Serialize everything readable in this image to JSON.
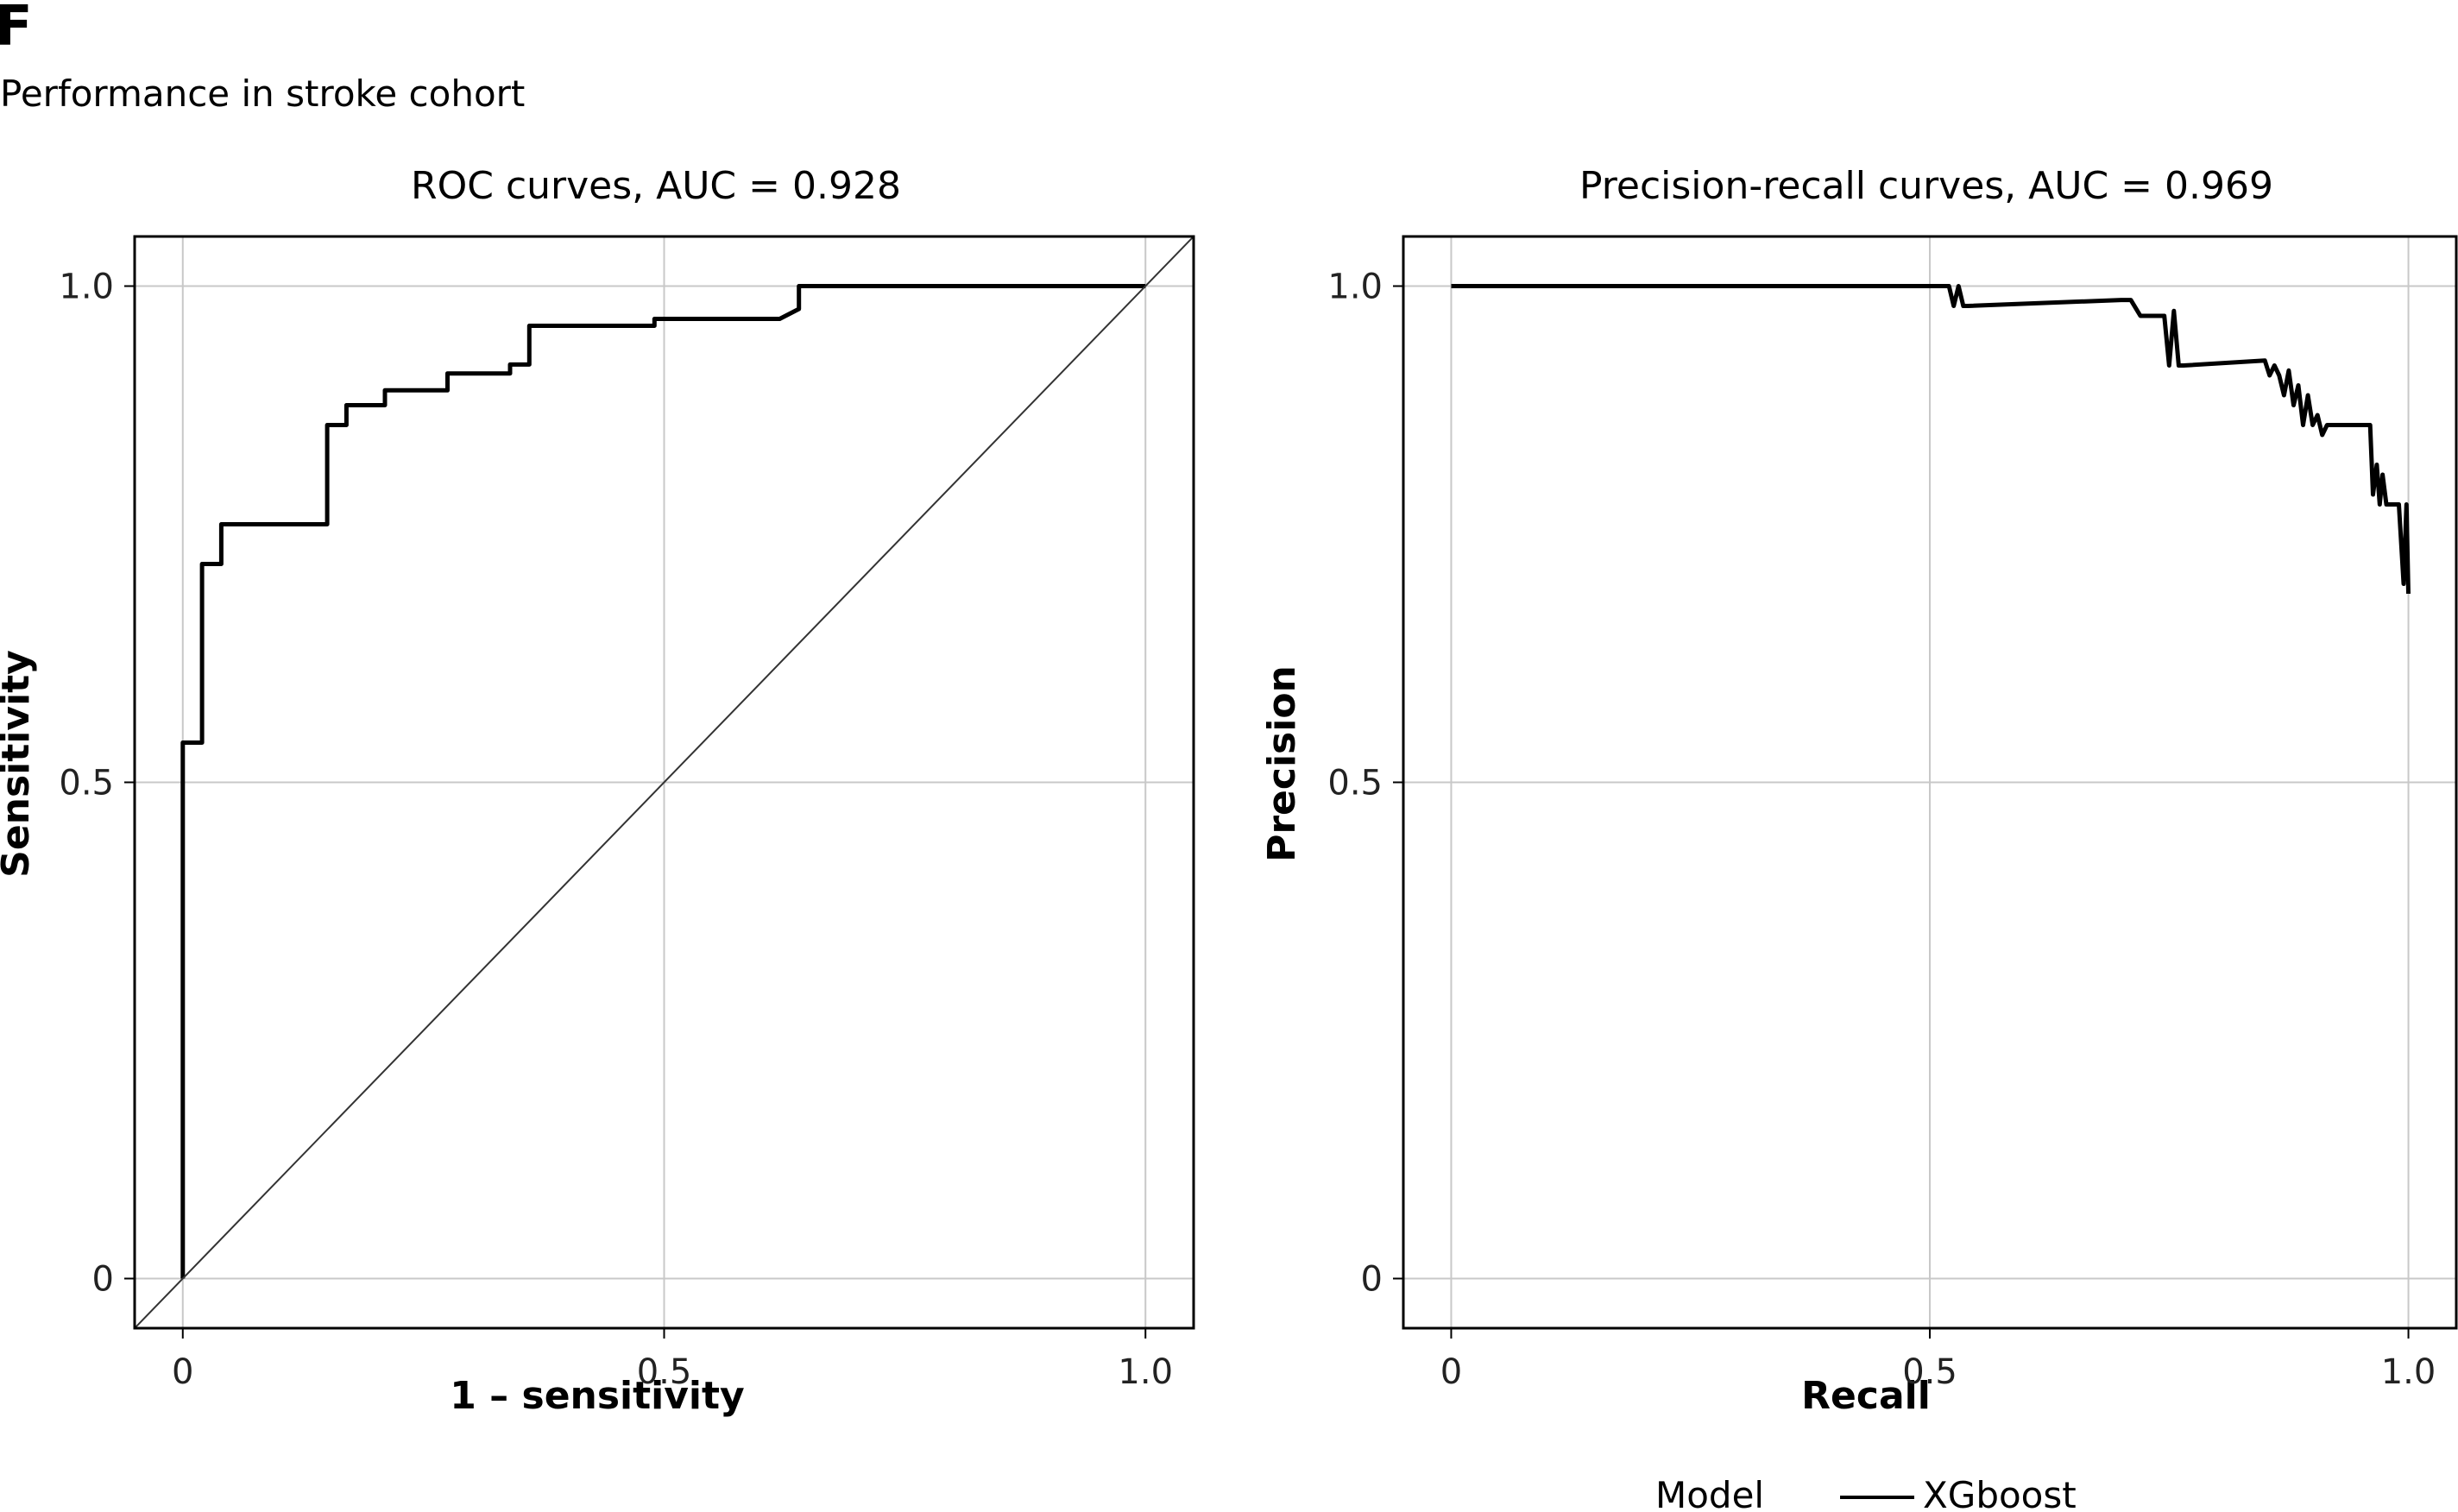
{
  "figure": {
    "panel_letter": "F",
    "subtitle": "Performance in stroke cohort"
  },
  "legend": {
    "title": "Model",
    "entries": [
      "XGboost"
    ]
  },
  "chart_data": [
    {
      "type": "line",
      "title": "ROC curves, AUC = 0.928",
      "xlabel": "1 – sensitivity",
      "ylabel": "Sensitivity",
      "xlim": [
        -0.05,
        1.05
      ],
      "ylim": [
        -0.05,
        1.05
      ],
      "xticks": [
        0,
        0.5,
        1.0
      ],
      "xtick_labels": [
        "0",
        "0.5",
        "1.0"
      ],
      "yticks": [
        0,
        0.5,
        1.0
      ],
      "ytick_labels": [
        "0",
        "0.5",
        "1.0"
      ],
      "grid": true,
      "series": [
        {
          "name": "XGboost",
          "x": [
            0,
            0,
            0.02,
            0.02,
            0.04,
            0.04,
            0.15,
            0.15,
            0.17,
            0.17,
            0.21,
            0.21,
            0.275,
            0.275,
            0.34,
            0.34,
            0.36,
            0.36,
            0.49,
            0.49,
            0.62,
            0.64,
            0.64,
            1.0
          ],
          "y": [
            0,
            0.54,
            0.54,
            0.72,
            0.72,
            0.76,
            0.76,
            0.86,
            0.86,
            0.88,
            0.88,
            0.895,
            0.895,
            0.912,
            0.912,
            0.921,
            0.921,
            0.96,
            0.96,
            0.967,
            0.967,
            0.977,
            1.0,
            1.0
          ]
        },
        {
          "role": "reference-diagonal",
          "x": [
            -0.05,
            1.05
          ],
          "y": [
            -0.05,
            1.05
          ]
        }
      ]
    },
    {
      "type": "line",
      "title": "Precision-recall curves, AUC = 0.969",
      "xlabel": "Recall",
      "ylabel": "Precision",
      "xlim": [
        -0.05,
        1.05
      ],
      "ylim": [
        -0.05,
        1.05
      ],
      "xticks": [
        0,
        0.5,
        1.0
      ],
      "xtick_labels": [
        "0",
        "0.5",
        "1.0"
      ],
      "yticks": [
        0,
        0.5,
        1.0
      ],
      "ytick_labels": [
        "0",
        "0.5",
        "1.0"
      ],
      "grid": true,
      "series": [
        {
          "name": "XGboost",
          "x": [
            0,
            0.52,
            0.525,
            0.53,
            0.535,
            0.54,
            0.7,
            0.71,
            0.72,
            0.745,
            0.75,
            0.755,
            0.76,
            0.765,
            0.85,
            0.855,
            0.86,
            0.865,
            0.87,
            0.875,
            0.88,
            0.885,
            0.89,
            0.895,
            0.9,
            0.905,
            0.91,
            0.915,
            0.92,
            0.96,
            0.963,
            0.967,
            0.97,
            0.973,
            0.977,
            0.99,
            0.995,
            0.998,
            1.0
          ],
          "y": [
            1.0,
            1.0,
            0.98,
            1.0,
            0.98,
            0.98,
            0.986,
            0.986,
            0.97,
            0.97,
            0.92,
            0.975,
            0.92,
            0.92,
            0.925,
            0.91,
            0.92,
            0.91,
            0.89,
            0.915,
            0.88,
            0.9,
            0.86,
            0.89,
            0.86,
            0.87,
            0.85,
            0.86,
            0.86,
            0.86,
            0.79,
            0.82,
            0.78,
            0.81,
            0.78,
            0.78,
            0.7,
            0.78,
            0.69
          ]
        }
      ]
    }
  ]
}
